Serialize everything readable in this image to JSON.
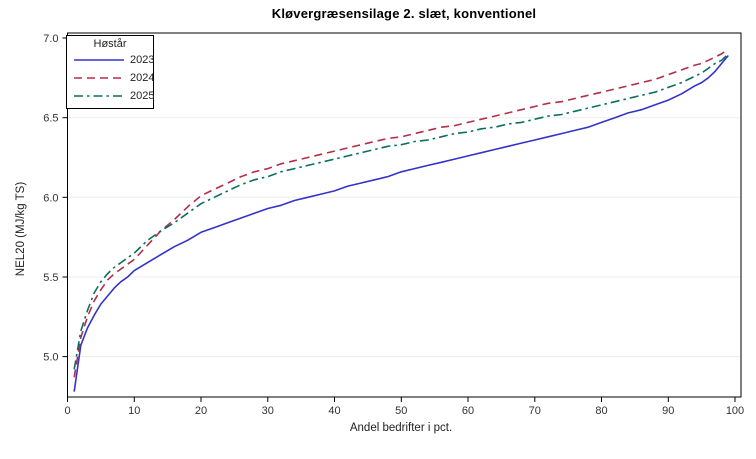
{
  "chart_data": {
    "type": "line",
    "title": "Kløvergræsensilage 2. slæt, konventionel",
    "xlabel": "Andel bedrifter i pct.",
    "ylabel": "NEL20 (MJ/kg TS)",
    "legend_title": "Høstår",
    "legend_position": "top-left",
    "grid": "horizontal",
    "xlim": [
      0,
      101
    ],
    "ylim": [
      4.75,
      7.03
    ],
    "x_ticks": [
      {
        "value": 0,
        "label": "0"
      },
      {
        "value": 10,
        "label": "10"
      },
      {
        "value": 20,
        "label": "20"
      },
      {
        "value": 30,
        "label": "30"
      },
      {
        "value": 40,
        "label": "40"
      },
      {
        "value": 50,
        "label": "50"
      },
      {
        "value": 60,
        "label": "60"
      },
      {
        "value": 70,
        "label": "70"
      },
      {
        "value": 80,
        "label": "80"
      },
      {
        "value": 90,
        "label": "90"
      },
      {
        "value": 100,
        "label": "100"
      }
    ],
    "y_ticks": [
      {
        "value": 5.0,
        "label": "5.0"
      },
      {
        "value": 5.5,
        "label": "5.5"
      },
      {
        "value": 6.0,
        "label": "6.0"
      },
      {
        "value": 6.5,
        "label": "6.5"
      },
      {
        "value": 7.0,
        "label": "7.0"
      }
    ],
    "gridline_values": [
      5.0,
      5.5,
      6.0,
      6.5
    ],
    "gridline_color": "#ededed",
    "frame_color": "#000000",
    "x": [
      1,
      2,
      3,
      4,
      5,
      6,
      7,
      8,
      9,
      10,
      12,
      14,
      16,
      18,
      20,
      22,
      24,
      26,
      28,
      30,
      32,
      34,
      36,
      38,
      40,
      42,
      44,
      46,
      48,
      50,
      52,
      54,
      56,
      58,
      60,
      62,
      64,
      66,
      68,
      70,
      72,
      74,
      76,
      78,
      80,
      82,
      84,
      86,
      88,
      90,
      92,
      94,
      95,
      96,
      97,
      98,
      99
    ],
    "series": [
      {
        "name": "2023",
        "color": "#3333c9",
        "style": "solid",
        "values": [
          4.78,
          5.07,
          5.18,
          5.26,
          5.33,
          5.38,
          5.43,
          5.47,
          5.5,
          5.54,
          5.59,
          5.64,
          5.69,
          5.73,
          5.78,
          5.81,
          5.84,
          5.87,
          5.9,
          5.93,
          5.95,
          5.98,
          6.0,
          6.02,
          6.04,
          6.07,
          6.09,
          6.11,
          6.13,
          6.16,
          6.18,
          6.2,
          6.22,
          6.24,
          6.26,
          6.28,
          6.3,
          6.32,
          6.34,
          6.36,
          6.38,
          6.4,
          6.42,
          6.44,
          6.47,
          6.5,
          6.53,
          6.55,
          6.58,
          6.61,
          6.65,
          6.7,
          6.72,
          6.75,
          6.79,
          6.84,
          6.89
        ]
      },
      {
        "name": "2024",
        "color": "#b52e45",
        "style": "dashed",
        "values": [
          4.87,
          5.12,
          5.25,
          5.35,
          5.42,
          5.48,
          5.52,
          5.55,
          5.58,
          5.61,
          5.7,
          5.79,
          5.86,
          5.94,
          6.01,
          6.05,
          6.09,
          6.13,
          6.16,
          6.18,
          6.21,
          6.23,
          6.25,
          6.27,
          6.29,
          6.31,
          6.33,
          6.35,
          6.37,
          6.38,
          6.4,
          6.42,
          6.44,
          6.45,
          6.47,
          6.49,
          6.51,
          6.53,
          6.55,
          6.57,
          6.59,
          6.6,
          6.62,
          6.64,
          6.66,
          6.68,
          6.7,
          6.72,
          6.74,
          6.77,
          6.8,
          6.83,
          6.84,
          6.86,
          6.88,
          6.9,
          6.93
        ]
      },
      {
        "name": "2025",
        "color": "#0b6e5f",
        "style": "dashdot",
        "values": [
          4.92,
          5.16,
          5.29,
          5.4,
          5.47,
          5.52,
          5.56,
          5.59,
          5.62,
          5.65,
          5.73,
          5.79,
          5.84,
          5.9,
          5.96,
          6.0,
          6.04,
          6.08,
          6.11,
          6.13,
          6.16,
          6.18,
          6.2,
          6.22,
          6.24,
          6.26,
          6.28,
          6.3,
          6.32,
          6.33,
          6.35,
          6.36,
          6.38,
          6.4,
          6.41,
          6.43,
          6.44,
          6.46,
          6.47,
          6.49,
          6.51,
          6.52,
          6.54,
          6.56,
          6.58,
          6.6,
          6.62,
          6.64,
          6.66,
          6.69,
          6.72,
          6.76,
          6.78,
          6.81,
          6.84,
          6.86,
          6.9
        ]
      }
    ]
  }
}
